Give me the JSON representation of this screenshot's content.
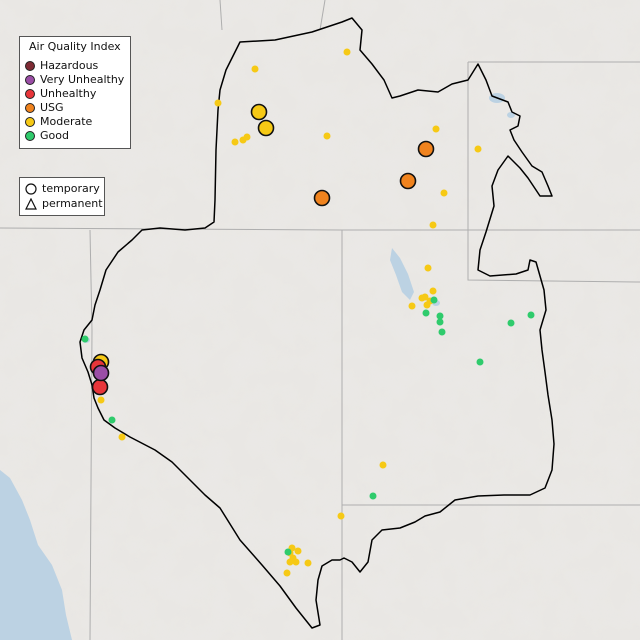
{
  "legend": {
    "title": "Air Quality Index",
    "categories": [
      {
        "label": "Hazardous",
        "color": "#7e2b34"
      },
      {
        "label": "Very Unhealthy",
        "color": "#9b4ea6"
      },
      {
        "label": "Unhealthy",
        "color": "#e8353a"
      },
      {
        "label": "USG",
        "color": "#f0831e"
      },
      {
        "label": "Moderate",
        "color": "#f6c915"
      },
      {
        "label": "Good",
        "color": "#2fcb6c"
      }
    ],
    "types": [
      {
        "label": "temporary",
        "icon": "circle-outline-icon"
      },
      {
        "label": "permanent",
        "icon": "triangle-outline-icon"
      }
    ]
  },
  "colors": {
    "land": "#e9e7e4",
    "water": "#bcd2e3",
    "state_line": "#aeaeae",
    "region_outline": "#000000"
  }
}
